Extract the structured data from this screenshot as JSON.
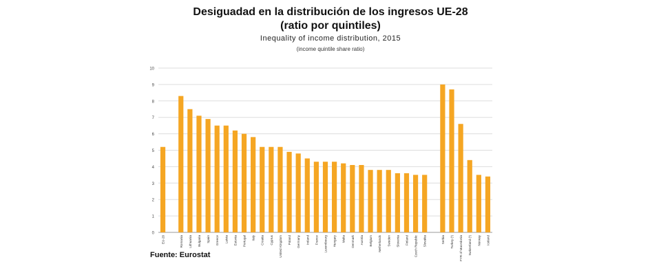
{
  "title": "Desiguadad en la distribución de los ingresos UE-28",
  "title_line2": "(ratio por quintiles)",
  "subtitle": "Inequality  of income  distribution,  2015",
  "subtitle2": "(income quintile share ratio)",
  "source": "Fuente: Eurostat",
  "colors": {
    "bar": "#F5A623",
    "grid": "#dddddd",
    "axis": "#999999"
  },
  "chart_data": {
    "type": "bar",
    "title": "Inequality  of income  distribution,  2015",
    "subtitle": "(income quintile share ratio)",
    "ylim": [
      0,
      10
    ],
    "yticks": [
      0,
      1,
      2,
      3,
      4,
      5,
      6,
      7,
      8,
      9,
      10
    ],
    "grid": true,
    "legend": "none",
    "categories": [
      "EU-28",
      "",
      "Romania",
      "Lithuania",
      "Bulgaria",
      "Spain",
      "Greece",
      "Latvia",
      "Estonia",
      "Portugal",
      "Italy",
      "Croatia",
      "Cyprus",
      "United Kingdom",
      "Poland",
      "Germany",
      "Ireland",
      "France",
      "Luxembourg",
      "Hungary",
      "Malta",
      "Denmark",
      "Austria",
      "Belgium",
      "Netherlands",
      "Sweden",
      "Slovenia",
      "Finland",
      "Czech Republic",
      "Slovakia",
      "",
      "Serbia",
      "Turkey (¹)",
      "FYR of Macedonia",
      "Switzerland (¹)",
      "Norway",
      "Iceland"
    ],
    "values": [
      5.2,
      null,
      8.3,
      7.5,
      7.1,
      6.9,
      6.5,
      6.5,
      6.2,
      6.0,
      5.8,
      5.2,
      5.2,
      5.2,
      4.9,
      4.8,
      4.5,
      4.3,
      4.3,
      4.3,
      4.2,
      4.1,
      4.1,
      3.8,
      3.8,
      3.8,
      3.6,
      3.6,
      3.5,
      3.5,
      null,
      9.0,
      8.7,
      6.6,
      4.4,
      3.5,
      3.4
    ]
  }
}
